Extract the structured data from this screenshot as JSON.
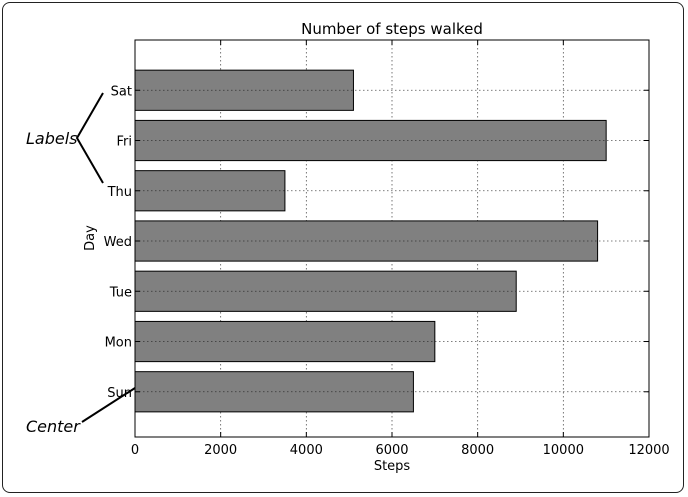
{
  "chart_data": {
    "type": "bar",
    "orientation": "horizontal",
    "title": "Number of steps walked",
    "xlabel": "Steps",
    "ylabel": "Day",
    "categories": [
      "Sun",
      "Mon",
      "Tue",
      "Wed",
      "Thu",
      "Fri",
      "Sat"
    ],
    "values": [
      6500,
      7000,
      8900,
      10800,
      3500,
      11000,
      5100
    ],
    "xlim": [
      0,
      12000
    ],
    "xticks": [
      0,
      2000,
      4000,
      6000,
      8000,
      10000,
      12000
    ],
    "grid": true,
    "bar_color": "#808080",
    "annotations": [
      {
        "text": "Labels",
        "target": "tick-labels"
      },
      {
        "text": "Center",
        "target": "bar-center"
      }
    ]
  }
}
